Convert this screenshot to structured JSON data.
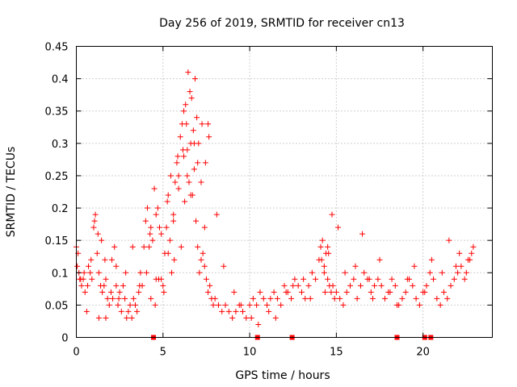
{
  "chart_data": {
    "type": "scatter",
    "title": "Day 256 of 2019, SRMTID for receiver cn13",
    "xlabel": "GPS time / hours",
    "ylabel": "SRMTID / TECUs",
    "xlim": [
      0,
      24
    ],
    "ylim": [
      0,
      0.45
    ],
    "x_ticks": [
      0,
      5,
      10,
      15,
      20
    ],
    "x_tick_labels": [
      "0",
      "5",
      "10",
      "15",
      "20"
    ],
    "y_ticks": [
      0,
      0.05,
      0.1,
      0.15,
      0.2,
      0.25,
      0.3,
      0.35,
      0.4,
      0.45
    ],
    "y_tick_labels": [
      "0",
      "0.05",
      "0.1",
      "0.15",
      "0.2",
      "0.25",
      "0.3",
      "0.35",
      "0.4",
      "0.45"
    ],
    "grid": true,
    "marker": "+",
    "color": "#ff0000",
    "series": [
      {
        "name": "SRMTID",
        "x": [
          0.0,
          0.1,
          0.2,
          0.3,
          0.4,
          0.5,
          0.6,
          0.7,
          0.8,
          0.9,
          1.0,
          1.1,
          1.2,
          1.3,
          1.4,
          1.5,
          1.6,
          1.7,
          1.8,
          1.9,
          2.0,
          2.1,
          2.2,
          2.3,
          2.4,
          2.5,
          2.6,
          2.7,
          2.8,
          2.9,
          3.0,
          3.1,
          3.2,
          3.3,
          3.4,
          3.5,
          3.6,
          3.7,
          3.8,
          3.9,
          4.0,
          4.1,
          4.2,
          4.3,
          4.4,
          4.5,
          4.6,
          4.7,
          4.8,
          4.9,
          5.0,
          5.1,
          5.2,
          5.3,
          5.4,
          5.5,
          5.6,
          5.7,
          5.8,
          5.9,
          6.0,
          6.1,
          6.2,
          6.3,
          6.4,
          6.5,
          6.6,
          6.7,
          6.8,
          6.9,
          7.0,
          7.1,
          7.2,
          7.3,
          7.4,
          7.5,
          7.6,
          7.7,
          7.8,
          7.9,
          8.0,
          8.2,
          8.4,
          8.6,
          8.8,
          9.0,
          9.2,
          9.4,
          9.6,
          9.8,
          10.0,
          10.2,
          10.4,
          10.6,
          10.8,
          11.0,
          11.2,
          11.4,
          11.6,
          11.8,
          12.0,
          12.2,
          12.4,
          12.6,
          12.8,
          13.0,
          13.2,
          13.4,
          13.6,
          13.8,
          14.0,
          14.1,
          14.2,
          14.3,
          14.4,
          14.5,
          14.6,
          14.7,
          14.8,
          14.9,
          15.0,
          15.2,
          15.4,
          15.6,
          15.8,
          16.0,
          16.2,
          16.4,
          16.6,
          16.8,
          17.0,
          17.2,
          17.4,
          17.6,
          17.8,
          18.0,
          18.2,
          18.4,
          18.6,
          18.8,
          19.0,
          19.2,
          19.4,
          19.6,
          19.8,
          20.0,
          20.2,
          20.4,
          20.6,
          20.8,
          21.0,
          21.2,
          21.4,
          21.6,
          21.8,
          22.0,
          22.2,
          22.4,
          22.6,
          22.8,
          0.05,
          0.15,
          0.25,
          0.45,
          0.65,
          0.85,
          1.05,
          1.25,
          1.45,
          1.65,
          2.05,
          2.45,
          2.85,
          3.25,
          3.65,
          4.05,
          4.25,
          4.55,
          4.75,
          5.05,
          5.25,
          5.45,
          5.65,
          5.85,
          6.05,
          6.15,
          6.25,
          6.35,
          6.45,
          6.55,
          6.65,
          6.75,
          6.85,
          6.95,
          7.05,
          7.25,
          7.45,
          7.65,
          8.1,
          8.5,
          9.1,
          9.5,
          10.1,
          10.5,
          11.1,
          11.5,
          12.1,
          12.5,
          13.1,
          13.5,
          14.15,
          14.35,
          14.55,
          14.75,
          15.1,
          15.5,
          16.1,
          16.5,
          17.1,
          17.5,
          18.1,
          18.5,
          19.1,
          19.5,
          20.1,
          20.5,
          21.1,
          21.5,
          22.1,
          22.5,
          22.9,
          6.2,
          6.4,
          6.6,
          6.8,
          7.0,
          7.2,
          5.9,
          5.6,
          5.3,
          4.9,
          4.6,
          4.3,
          7.4,
          7.6,
          2.3,
          1.3,
          1.7,
          14.3,
          14.5,
          16.9,
          21.9,
          22.7
        ],
        "y": [
          0.14,
          0.13,
          0.09,
          0.08,
          0.09,
          0.07,
          0.04,
          0.11,
          0.1,
          0.09,
          0.17,
          0.19,
          0.13,
          0.1,
          0.08,
          0.07,
          0.08,
          0.09,
          0.06,
          0.05,
          0.07,
          0.06,
          0.14,
          0.08,
          0.05,
          0.07,
          0.04,
          0.08,
          0.06,
          0.03,
          0.04,
          0.05,
          0.03,
          0.06,
          0.05,
          0.04,
          0.07,
          0.1,
          0.08,
          0.14,
          0.18,
          0.2,
          0.14,
          0.17,
          0.15,
          0.23,
          0.19,
          0.2,
          0.17,
          0.09,
          0.08,
          0.13,
          0.17,
          0.22,
          0.15,
          0.1,
          0.18,
          0.24,
          0.27,
          0.25,
          0.31,
          0.33,
          0.28,
          0.36,
          0.29,
          0.24,
          0.3,
          0.22,
          0.26,
          0.18,
          0.14,
          0.1,
          0.12,
          0.13,
          0.11,
          0.09,
          0.07,
          0.08,
          0.06,
          0.05,
          0.06,
          0.05,
          0.04,
          0.05,
          0.04,
          0.03,
          0.04,
          0.05,
          0.04,
          0.03,
          0.05,
          0.06,
          0.05,
          0.07,
          0.06,
          0.05,
          0.06,
          0.07,
          0.06,
          0.05,
          0.08,
          0.07,
          0.06,
          0.09,
          0.08,
          0.07,
          0.06,
          0.08,
          0.1,
          0.09,
          0.12,
          0.14,
          0.15,
          0.11,
          0.13,
          0.09,
          0.08,
          0.07,
          0.08,
          0.06,
          0.07,
          0.06,
          0.05,
          0.07,
          0.08,
          0.09,
          0.06,
          0.08,
          0.1,
          0.09,
          0.07,
          0.08,
          0.09,
          0.08,
          0.06,
          0.07,
          0.09,
          0.08,
          0.05,
          0.06,
          0.07,
          0.09,
          0.08,
          0.06,
          0.05,
          0.07,
          0.08,
          0.1,
          0.09,
          0.06,
          0.05,
          0.07,
          0.06,
          0.08,
          0.09,
          0.1,
          0.11,
          0.09,
          0.12,
          0.13,
          0.11,
          0.1,
          0.09,
          0.1,
          0.08,
          0.12,
          0.18,
          0.16,
          0.15,
          0.12,
          0.12,
          0.06,
          0.1,
          0.14,
          0.08,
          0.1,
          0.16,
          0.05,
          0.09,
          0.07,
          0.21,
          0.25,
          0.12,
          0.28,
          0.14,
          0.29,
          0.21,
          0.33,
          0.41,
          0.38,
          0.37,
          0.32,
          0.4,
          0.34,
          0.3,
          0.33,
          0.27,
          0.31,
          0.19,
          0.11,
          0.07,
          0.05,
          0.03,
          0.02,
          0.04,
          0.03,
          0.07,
          0.08,
          0.09,
          0.06,
          0.12,
          0.07,
          0.13,
          0.19,
          0.17,
          0.1,
          0.11,
          0.16,
          0.06,
          0.12,
          0.07,
          0.05,
          0.09,
          0.11,
          0.07,
          0.12,
          0.1,
          0.15,
          0.13,
          0.1,
          0.14,
          0.35,
          0.25,
          0.22,
          0.3,
          0.27,
          0.24,
          0.23,
          0.19,
          0.13,
          0.16,
          0.09,
          0.06,
          0.17,
          0.33,
          0.11,
          0.03,
          0.03,
          0.1,
          0.14,
          0.09,
          0.11,
          0.12
        ]
      }
    ],
    "bottom_markers_x": [
      4.45,
      10.45,
      12.45,
      18.5,
      20.1,
      20.45
    ]
  }
}
